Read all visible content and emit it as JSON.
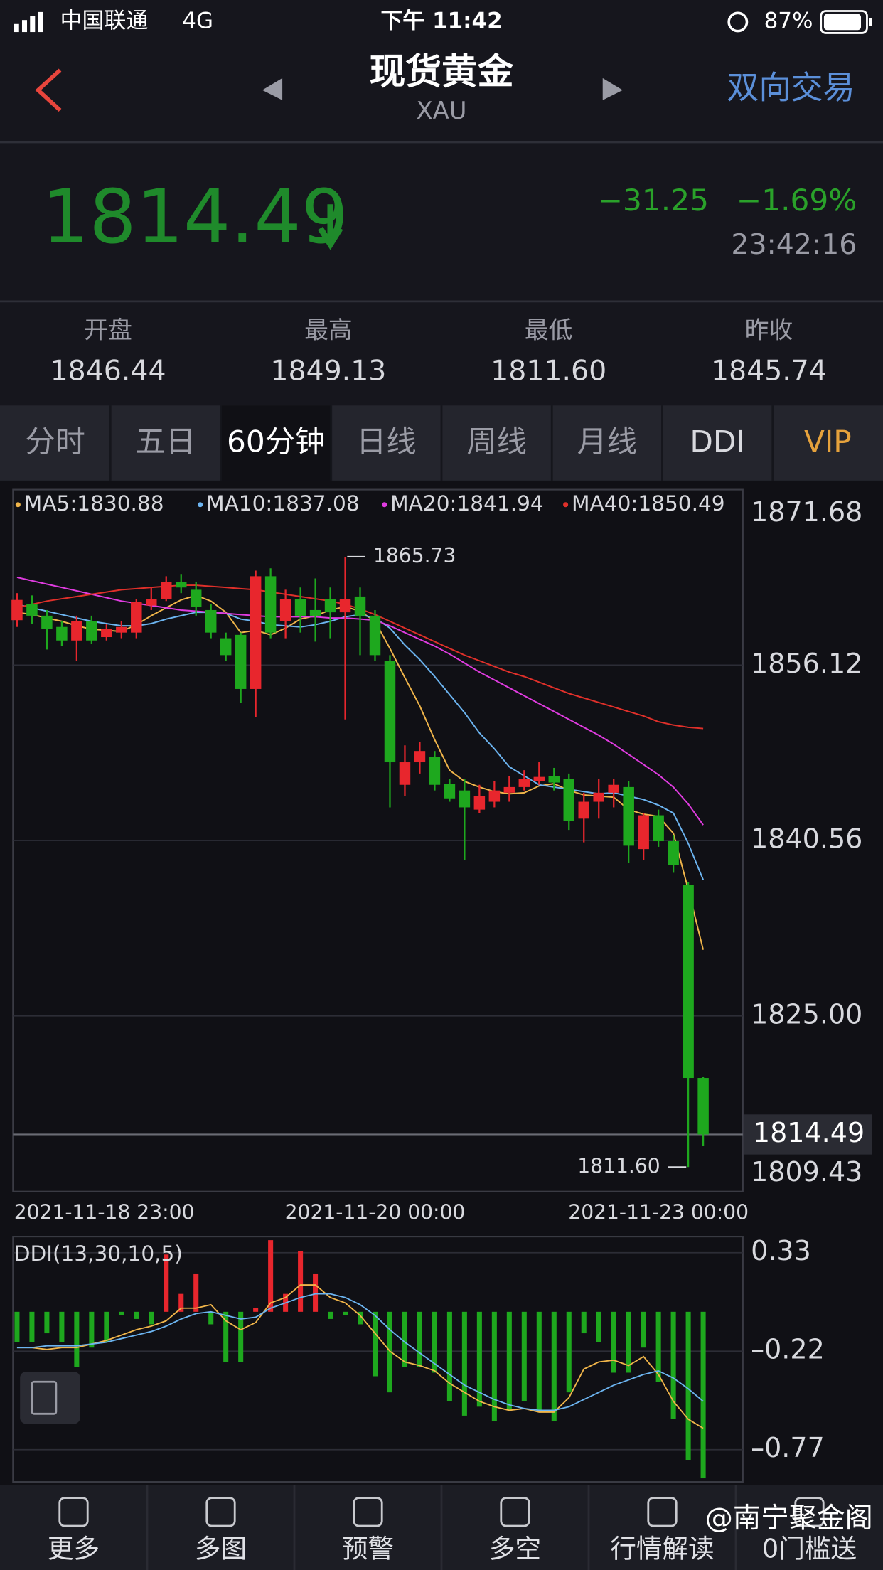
{
  "status": {
    "carrier": "中国联通",
    "network": "4G",
    "time": "下午 11:42",
    "battery": "87%"
  },
  "header": {
    "title": "现货黄金",
    "symbol": "XAU",
    "action": "双向交易"
  },
  "quote": {
    "price": "1814.49",
    "change": "−31.25",
    "change_pct": "−1.69%",
    "time": "23:42:16"
  },
  "stats": [
    {
      "label": "开盘",
      "value": "1846.44"
    },
    {
      "label": "最高",
      "value": "1849.13"
    },
    {
      "label": "最低",
      "value": "1811.60"
    },
    {
      "label": "昨收",
      "value": "1845.74"
    }
  ],
  "tabs": [
    "分时",
    "五日",
    "60分钟",
    "日线",
    "周线",
    "月线",
    "DDI",
    "VIP"
  ],
  "active_tab": 2,
  "chart": {
    "type": "candlestick",
    "up_color": "#e8262d",
    "down_color": "#1ea81e",
    "categories": [
      "2021-11-18 23:00",
      null,
      null,
      null,
      null,
      null,
      null,
      null,
      null,
      null,
      null,
      null,
      null,
      null,
      null,
      null,
      null,
      null,
      null,
      null,
      null,
      null,
      null,
      null,
      "2021-11-20 00:00",
      null,
      null,
      null,
      null,
      null,
      null,
      null,
      null,
      null,
      null,
      null,
      null,
      null,
      null,
      null,
      null,
      null,
      null,
      "2021-11-23 00:00",
      null,
      null,
      null
    ],
    "open": [
      1860.1,
      1861.5,
      1860.5,
      1859.5,
      1858.3,
      1860,
      1858.6,
      1859,
      1859,
      1861.4,
      1862,
      1863.5,
      1862.8,
      1861,
      1858.5,
      1858.8,
      1854,
      1864,
      1860,
      1862,
      1861,
      1862,
      1860.8,
      1862.2,
      1860.5,
      1856.5,
      1845.5,
      1847.5,
      1848,
      1845.6,
      1845,
      1843.3,
      1844,
      1844.8,
      1845.3,
      1845.8,
      1846.3,
      1846,
      1842.5,
      1844,
      1844.8,
      1845.3,
      1839.8,
      1842.8,
      1840.5,
      1836.6,
      1819.5
    ],
    "high": [
      1862.5,
      1862.3,
      1861,
      1860,
      1860.5,
      1860.5,
      1859.8,
      1860,
      1862,
      1863,
      1864,
      1864.2,
      1863.5,
      1861.5,
      1859,
      1859,
      1864.5,
      1864.7,
      1862.8,
      1863,
      1863.8,
      1863,
      1865.73,
      1863,
      1861,
      1857,
      1849,
      1849.3,
      1848.5,
      1846,
      1846,
      1845.5,
      1845.8,
      1846.3,
      1846.8,
      1847.5,
      1847,
      1846.5,
      1844.8,
      1846,
      1846,
      1845.8,
      1843,
      1843.3,
      1841,
      1836.9,
      1819.6
    ],
    "low": [
      1859.5,
      1859.8,
      1857.5,
      1857.8,
      1856.5,
      1858,
      1858.3,
      1858.5,
      1858.5,
      1861,
      1861.8,
      1862.5,
      1860.5,
      1858.5,
      1856.5,
      1852.8,
      1851.5,
      1858.5,
      1858.5,
      1859,
      1858.2,
      1858.5,
      1851.3,
      1857,
      1856.5,
      1843.5,
      1844.5,
      1846.5,
      1845,
      1844,
      1838.8,
      1843,
      1843.5,
      1844,
      1845,
      1845.5,
      1845,
      1841.5,
      1840.4,
      1842.5,
      1843.5,
      1838.6,
      1838.8,
      1840,
      1837.7,
      1811.6,
      1813.5
    ],
    "close": [
      1861.9,
      1860.5,
      1859.3,
      1858.3,
      1860,
      1858.3,
      1859.3,
      1859.5,
      1861.7,
      1862,
      1863.5,
      1863,
      1861.3,
      1859,
      1857,
      1854,
      1864,
      1859,
      1862,
      1860.5,
      1860.5,
      1860.8,
      1862,
      1860.5,
      1857,
      1847.5,
      1847.5,
      1848.5,
      1845.5,
      1844.3,
      1843.5,
      1844.5,
      1845,
      1845.3,
      1846,
      1846.2,
      1845.7,
      1842.3,
      1844,
      1844.8,
      1845.5,
      1840.1,
      1842.8,
      1840.5,
      1838.4,
      1819.5,
      1814.49
    ],
    "series": [
      {
        "name": "MA5:1830.88",
        "color": "#f0b54a",
        "values": [
          1860.8,
          1860.6,
          1860.3,
          1860,
          1859.6,
          1859.3,
          1859.2,
          1859.1,
          1859.7,
          1860.5,
          1861.2,
          1861.9,
          1862.3,
          1861.8,
          1860.8,
          1859,
          1859.2,
          1858.8,
          1859.4,
          1860.2,
          1860.5,
          1861,
          1861.3,
          1860.9,
          1860,
          1857.6,
          1855,
          1852.5,
          1849.5,
          1846.8,
          1845.8,
          1845.3,
          1844.9,
          1844.7,
          1844.8,
          1845.4,
          1845.6,
          1845,
          1844.6,
          1844.5,
          1844.4,
          1843.3,
          1842.9,
          1842.7,
          1841.2,
          1836.2,
          1830.88
        ]
      },
      {
        "name": "MA10:1837.08",
        "color": "#6cb4f0",
        "values": [
          1861.5,
          1861.2,
          1860.9,
          1860.6,
          1860.3,
          1860,
          1859.8,
          1859.6,
          1859.6,
          1859.8,
          1860.2,
          1860.5,
          1860.8,
          1860.8,
          1860.7,
          1860.2,
          1860,
          1859.7,
          1859.6,
          1859.5,
          1859.7,
          1860,
          1860.4,
          1860.6,
          1860.3,
          1859.4,
          1857.9,
          1856.6,
          1855.1,
          1853.5,
          1851.9,
          1850.1,
          1848.7,
          1847.1,
          1846.3,
          1845.5,
          1845.3,
          1845.1,
          1844.9,
          1844.7,
          1844.8,
          1844.5,
          1844.2,
          1843.7,
          1843,
          1840.3,
          1837.08
        ]
      },
      {
        "name": "MA20:1841.94",
        "color": "#e03ce0",
        "values": [
          1863.9,
          1863.6,
          1863.3,
          1863,
          1862.7,
          1862.4,
          1862.1,
          1861.8,
          1861.6,
          1861.4,
          1861.2,
          1861,
          1860.9,
          1860.8,
          1860.7,
          1860.6,
          1860.5,
          1860.4,
          1860.4,
          1860.4,
          1860.4,
          1860.3,
          1860.3,
          1860.2,
          1860.1,
          1859.6,
          1859,
          1858.4,
          1857.8,
          1857.1,
          1856.3,
          1855.5,
          1854.8,
          1854.1,
          1853.4,
          1852.7,
          1852,
          1851.3,
          1850.6,
          1849.9,
          1849.1,
          1848.2,
          1847.3,
          1846.4,
          1845.3,
          1843.8,
          1841.94
        ]
      },
      {
        "name": "MA40:1850.49",
        "color": "#e0302a",
        "values": [
          1861.2,
          1861.5,
          1861.8,
          1862,
          1862.2,
          1862.4,
          1862.6,
          1862.8,
          1862.9,
          1863,
          1863.1,
          1863.2,
          1863.2,
          1863.1,
          1863,
          1862.9,
          1862.8,
          1862.6,
          1862.4,
          1862.2,
          1862,
          1861.8,
          1861.5,
          1861.1,
          1860.6,
          1860,
          1859.4,
          1858.8,
          1858.2,
          1857.6,
          1857,
          1856.5,
          1856,
          1855.5,
          1855.1,
          1854.6,
          1854.1,
          1853.6,
          1853.2,
          1852.8,
          1852.4,
          1852,
          1851.6,
          1851.1,
          1850.8,
          1850.6,
          1850.49
        ]
      }
    ],
    "ylim": [
      1809.43,
      1871.68
    ],
    "yticks": [
      1871.68,
      1856.12,
      1840.56,
      {
        "value": 1825,
        "label": "1825.00"
      },
      1809.43
    ],
    "grid": true,
    "last_price": {
      "value": 1814.49,
      "label": "1814.49"
    },
    "annotations": [
      {
        "value": 1865.73,
        "label": "1865.73"
      },
      {
        "value": 1811.6,
        "label": "1811.60"
      }
    ]
  },
  "indicator": {
    "type": "bar",
    "title": "DDI(13,30,10,5)",
    "up_color": "#e8262d",
    "down_color": "#1ea81e",
    "values": [
      -0.17,
      -0.17,
      -0.12,
      -0.17,
      -0.31,
      -0.2,
      -0.17,
      -0.02,
      -0.04,
      -0.07,
      0.32,
      0.1,
      0.21,
      -0.07,
      -0.28,
      -0.28,
      0.02,
      0.4,
      0.1,
      0.34,
      0.21,
      -0.04,
      -0.02,
      -0.07,
      -0.36,
      -0.45,
      -0.31,
      -0.31,
      -0.34,
      -0.5,
      -0.58,
      -0.53,
      -0.61,
      -0.55,
      -0.5,
      -0.55,
      -0.61,
      -0.45,
      -0.12,
      -0.17,
      -0.34,
      -0.34,
      -0.2,
      -0.39,
      -0.6,
      -0.83,
      -0.93
    ],
    "lines": [
      {
        "color": "#f0b54a",
        "values": [
          -0.2,
          -0.2,
          -0.21,
          -0.2,
          -0.2,
          -0.18,
          -0.16,
          -0.13,
          -0.1,
          -0.08,
          -0.05,
          0.02,
          0.02,
          0.04,
          -0.05,
          -0.1,
          -0.06,
          0.05,
          0.08,
          0.15,
          0.15,
          0.08,
          0.05,
          -0.02,
          -0.12,
          -0.22,
          -0.28,
          -0.3,
          -0.33,
          -0.4,
          -0.45,
          -0.5,
          -0.53,
          -0.55,
          -0.54,
          -0.56,
          -0.56,
          -0.48,
          -0.32,
          -0.28,
          -0.27,
          -0.3,
          -0.25,
          -0.35,
          -0.5,
          -0.6,
          -0.65
        ]
      },
      {
        "color": "#6cb4f0",
        "values": [
          -0.2,
          -0.2,
          -0.19,
          -0.19,
          -0.19,
          -0.18,
          -0.17,
          -0.15,
          -0.13,
          -0.11,
          -0.08,
          -0.04,
          -0.01,
          0.0,
          -0.02,
          -0.04,
          -0.03,
          0.02,
          0.05,
          0.08,
          0.1,
          0.1,
          0.08,
          0.04,
          -0.02,
          -0.1,
          -0.17,
          -0.23,
          -0.29,
          -0.35,
          -0.41,
          -0.45,
          -0.49,
          -0.52,
          -0.54,
          -0.55,
          -0.55,
          -0.53,
          -0.49,
          -0.45,
          -0.41,
          -0.38,
          -0.35,
          -0.33,
          -0.37,
          -0.43,
          -0.5
        ]
      }
    ],
    "ylim": [
      -0.95,
      0.42
    ],
    "yticks": [
      0.33,
      {
        "value": -0.22,
        "label": "–0.22"
      },
      {
        "value": -0.77,
        "label": "–0.77"
      }
    ],
    "grid": true
  },
  "nav": [
    "更多",
    "多图",
    "预警",
    "多空",
    "行情解读",
    "0门槛送"
  ],
  "watermark": "@南宁聚金阁"
}
